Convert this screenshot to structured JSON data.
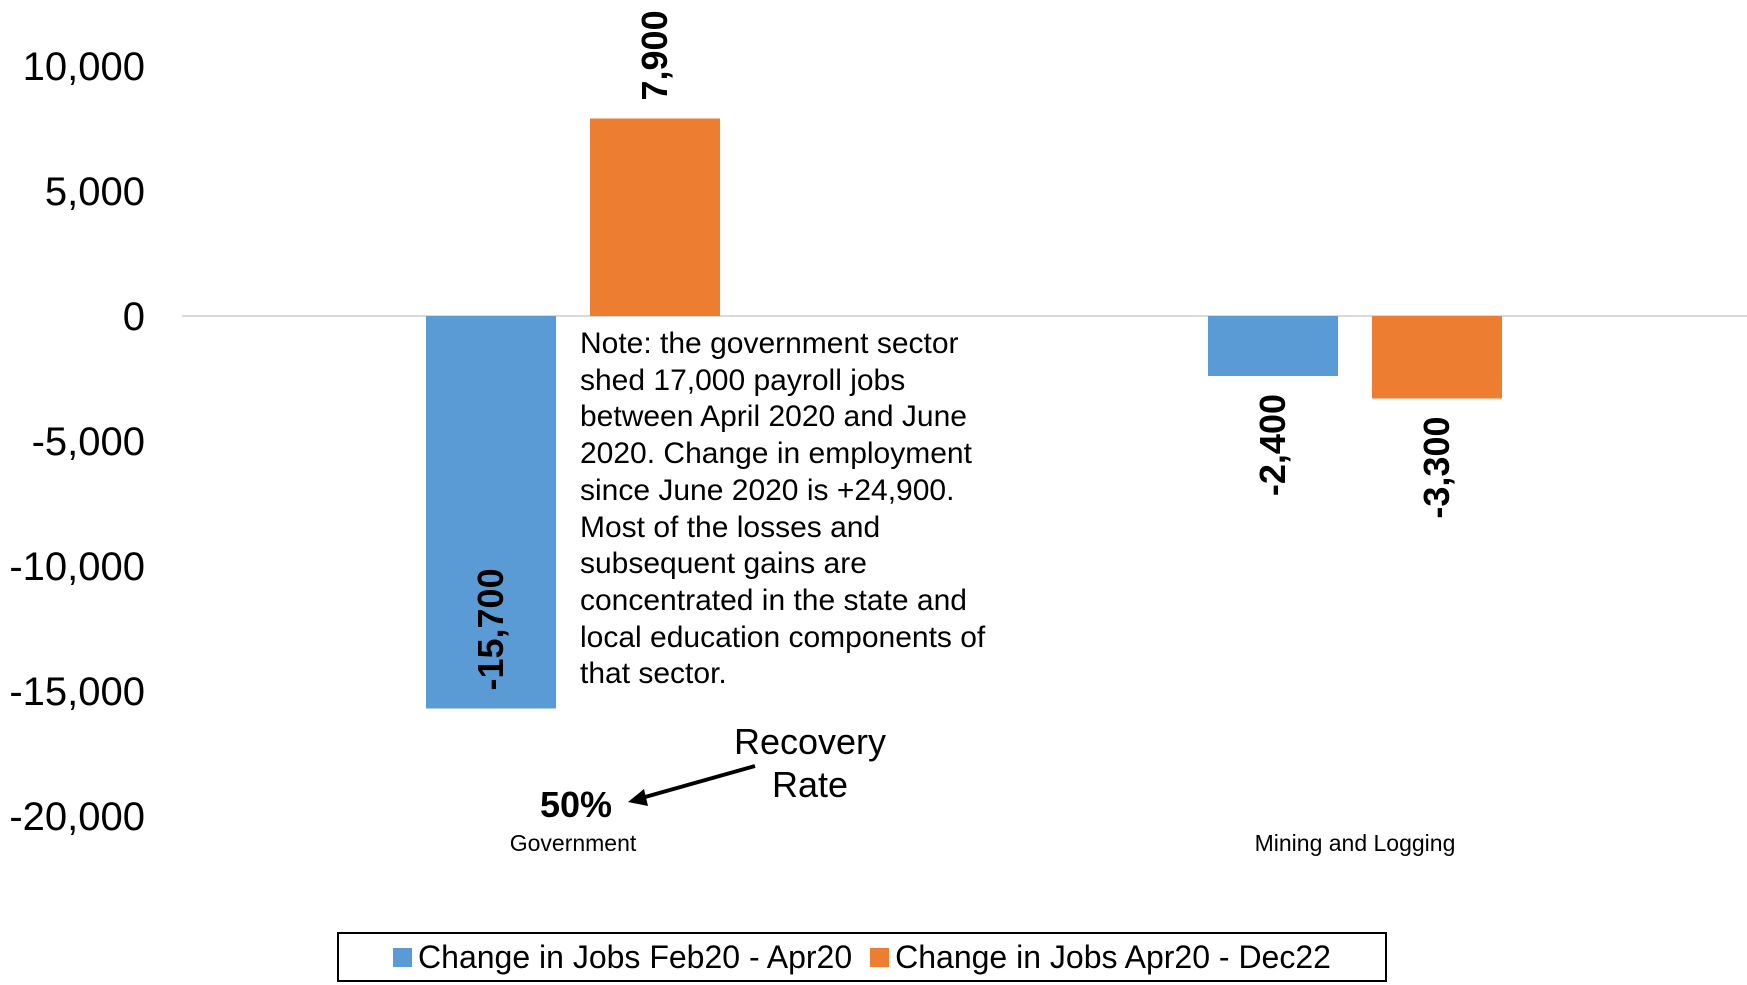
{
  "chart_data": {
    "type": "bar",
    "categories": [
      "Government",
      "Mining and Logging"
    ],
    "series": [
      {
        "name": "Change in Jobs Feb20 - Apr20",
        "color": "#5b9bd5",
        "values": [
          -15700,
          -2400
        ]
      },
      {
        "name": "Change in Jobs Apr20 - Dec22",
        "color": "#ed7d31",
        "values": [
          7900,
          -3300
        ]
      }
    ],
    "data_labels": [
      [
        "-15,700",
        "-2,400"
      ],
      [
        "7,900",
        "-3,300"
      ]
    ],
    "yticks": [
      10000,
      5000,
      0,
      -5000,
      -10000,
      -15000,
      -20000
    ],
    "ytick_labels": [
      "10,000",
      "5,000",
      "0",
      "-5,000",
      "-10,000",
      "-15,000",
      "-20,000"
    ],
    "ylim": [
      -20000,
      11500
    ],
    "title": "",
    "xlabel": "",
    "ylabel": "",
    "grid": false,
    "legend_position": "bottom",
    "zero_line_color": "#d9d9d9"
  },
  "annotations": {
    "note": "Note: the government sector shed 17,000 payroll jobs between April 2020 and June 2020. Change in employment since June 2020 is +24,900. Most of the losses and subsequent gains are concentrated in the state and local education components of that sector.",
    "recovery_title": "Recovery Rate",
    "recovery_value": "50%"
  },
  "legend": {
    "items": [
      {
        "label": "Change in Jobs Feb20 - Apr20",
        "color": "#5b9bd5"
      },
      {
        "label": "Change in Jobs Apr20 - Dec22",
        "color": "#ed7d31"
      }
    ]
  }
}
